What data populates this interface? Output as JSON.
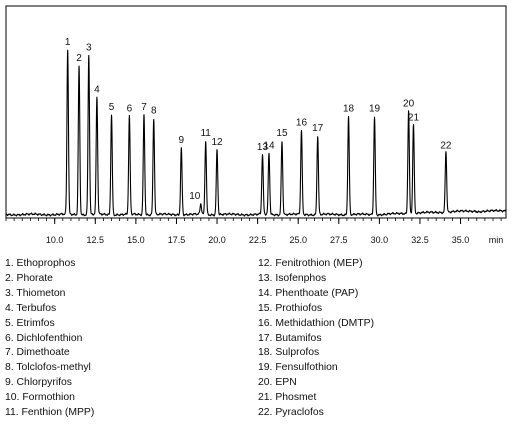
{
  "chart_data": {
    "type": "line",
    "title": "",
    "xlabel": "",
    "ylabel": "",
    "x_unit": "min",
    "xlim": [
      7.0,
      37.8
    ],
    "ylim": [
      0,
      100
    ],
    "x_ticks": [
      10.0,
      12.5,
      15.0,
      17.5,
      20.0,
      22.5,
      25.0,
      27.5,
      30.0,
      32.5,
      35.0
    ],
    "x_tick_labels": [
      "10.0",
      "12.5",
      "15.0",
      "17.5",
      "20.0",
      "22.5",
      "25.0",
      "27.5",
      "30.0",
      "32.5",
      "35.0"
    ],
    "grid": false,
    "baseline": 2,
    "series": [
      {
        "peaks": [
          {
            "label": "1",
            "rt": 10.8,
            "height": 96
          },
          {
            "label": "2",
            "rt": 11.5,
            "height": 87
          },
          {
            "label": "3",
            "rt": 12.1,
            "height": 93
          },
          {
            "label": "4",
            "rt": 12.6,
            "height": 69
          },
          {
            "label": "5",
            "rt": 13.5,
            "height": 59
          },
          {
            "label": "6",
            "rt": 14.6,
            "height": 58
          },
          {
            "label": "7",
            "rt": 15.5,
            "height": 59
          },
          {
            "label": "8",
            "rt": 16.1,
            "height": 57
          },
          {
            "label": "9",
            "rt": 17.8,
            "height": 40
          },
          {
            "label": "10",
            "rt": 19.0,
            "height": 8
          },
          {
            "label": "11",
            "rt": 19.3,
            "height": 44
          },
          {
            "label": "12",
            "rt": 20.0,
            "height": 39
          },
          {
            "label": "13",
            "rt": 22.8,
            "height": 36
          },
          {
            "label": "14",
            "rt": 23.2,
            "height": 37
          },
          {
            "label": "15",
            "rt": 24.0,
            "height": 44
          },
          {
            "label": "16",
            "rt": 25.2,
            "height": 50
          },
          {
            "label": "17",
            "rt": 26.2,
            "height": 47
          },
          {
            "label": "18",
            "rt": 28.1,
            "height": 58
          },
          {
            "label": "19",
            "rt": 29.7,
            "height": 58
          },
          {
            "label": "20",
            "rt": 31.8,
            "height": 61
          },
          {
            "label": "21",
            "rt": 32.1,
            "height": 53
          },
          {
            "label": "22",
            "rt": 34.1,
            "height": 37
          }
        ]
      }
    ]
  },
  "legend_left": [
    "1. Ethoprophos",
    "2. Phorate",
    "3. Thiometon",
    "4. Terbufos",
    "5. Etrimfos",
    "6. Dichlofenthion",
    "7. Dimethoate",
    "8. Tolclofos-methyl",
    "9. Chlorpyrifos",
    "10. Formothion",
    "11. Fenthion (MPP)"
  ],
  "legend_right": [
    "12. Fenitrothion (MEP)",
    "13. Isofenphos",
    "14. Phenthoate (PAP)",
    "15. Prothiofos",
    "16. Methidathion (DMTP)",
    "17. Butamifos",
    "18. Sulprofos",
    "19. Fensulfothion",
    "20. EPN",
    "21. Phosmet",
    "22. Pyraclofos"
  ]
}
